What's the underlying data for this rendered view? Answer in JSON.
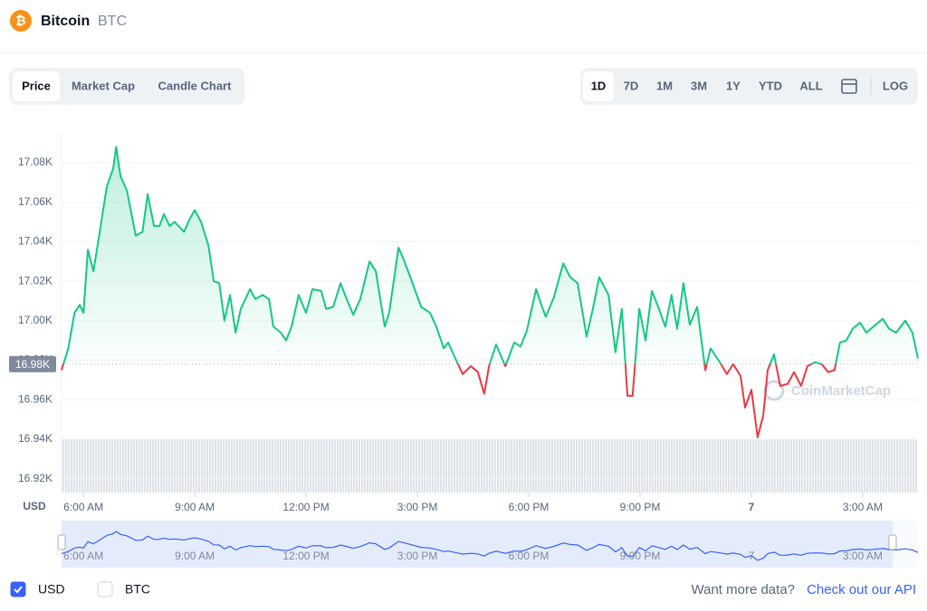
{
  "header": {
    "name": "Bitcoin",
    "symbol": "BTC"
  },
  "tabs": {
    "items": [
      "Price",
      "Market Cap",
      "Candle Chart"
    ],
    "active": 0
  },
  "ranges": {
    "items": [
      "1D",
      "7D",
      "1M",
      "3M",
      "1Y",
      "YTD",
      "ALL"
    ],
    "active": 0,
    "log": "LOG"
  },
  "chart_data": {
    "type": "line",
    "x": [
      5.41,
      5.59,
      5.76,
      5.9,
      6.0,
      6.12,
      6.27,
      6.44,
      6.63,
      6.8,
      6.88,
      7.0,
      7.17,
      7.41,
      7.59,
      7.73,
      7.9,
      8.05,
      8.17,
      8.32,
      8.46,
      8.71,
      8.85,
      9.0,
      9.17,
      9.37,
      9.51,
      9.66,
      9.8,
      9.95,
      10.1,
      10.24,
      10.49,
      10.63,
      10.83,
      11.0,
      11.12,
      11.32,
      11.46,
      11.61,
      11.8,
      12.0,
      12.17,
      12.41,
      12.54,
      12.73,
      12.93,
      13.07,
      13.27,
      13.46,
      13.71,
      13.88,
      14.12,
      14.24,
      14.49,
      14.63,
      14.85,
      15.1,
      15.34,
      15.51,
      15.71,
      15.83,
      16.02,
      16.22,
      16.44,
      16.63,
      16.8,
      16.93,
      17.12,
      17.37,
      17.61,
      17.78,
      17.95,
      18.2,
      18.34,
      18.46,
      18.68,
      18.93,
      19.12,
      19.32,
      19.56,
      19.73,
      19.9,
      20.15,
      20.34,
      20.51,
      20.66,
      20.8,
      20.98,
      21.15,
      21.32,
      21.49,
      21.68,
      21.85,
      22.0,
      22.17,
      22.34,
      22.54,
      22.76,
      22.9,
      23.15,
      23.34,
      23.51,
      23.71,
      23.83,
      24.0,
      24.17,
      24.32,
      24.44,
      24.61,
      24.78,
      24.98,
      25.15,
      25.34,
      25.51,
      25.71,
      25.9,
      26.07,
      26.24,
      26.39,
      26.56,
      26.73,
      26.93,
      27.1,
      27.29,
      27.54,
      27.71,
      27.9,
      28.15,
      28.34,
      28.49
    ],
    "values": [
      16.975,
      16.986,
      17.004,
      17.008,
      17.004,
      17.036,
      17.025,
      17.045,
      17.068,
      17.077,
      17.088,
      17.073,
      17.066,
      17.043,
      17.045,
      17.064,
      17.048,
      17.048,
      17.054,
      17.048,
      17.05,
      17.045,
      17.051,
      17.056,
      17.05,
      17.038,
      17.02,
      17.019,
      17.0,
      17.013,
      16.994,
      17.006,
      17.016,
      17.011,
      17.013,
      17.011,
      16.997,
      16.994,
      16.99,
      16.997,
      17.013,
      17.004,
      17.016,
      17.015,
      17.006,
      17.007,
      17.019,
      17.012,
      17.003,
      17.011,
      17.03,
      17.025,
      16.997,
      17.004,
      17.037,
      17.031,
      17.02,
      17.007,
      17.004,
      16.997,
      16.986,
      16.989,
      16.981,
      16.973,
      16.977,
      16.974,
      16.963,
      16.977,
      16.988,
      16.977,
      16.989,
      16.987,
      16.995,
      17.016,
      17.008,
      17.002,
      17.012,
      17.029,
      17.022,
      17.019,
      16.992,
      17.006,
      17.022,
      17.013,
      16.984,
      17.006,
      16.962,
      16.962,
      17.006,
      16.99,
      17.015,
      17.007,
      16.997,
      17.013,
      16.996,
      17.019,
      16.998,
      17.007,
      16.975,
      16.986,
      16.979,
      16.973,
      16.978,
      16.972,
      16.956,
      16.965,
      16.941,
      16.952,
      16.975,
      16.983,
      16.967,
      16.968,
      16.974,
      16.967,
      16.977,
      16.979,
      16.978,
      16.974,
      16.975,
      16.989,
      16.99,
      16.996,
      16.999,
      16.994,
      16.997,
      17.001,
      16.996,
      16.994,
      17.0,
      16.994,
      16.981
    ],
    "xlim": [
      5.41,
      28.49
    ],
    "xticks": [
      {
        "value": 6,
        "label": "6:00 AM"
      },
      {
        "value": 9,
        "label": "9:00 AM"
      },
      {
        "value": 12,
        "label": "12:00 PM"
      },
      {
        "value": 15,
        "label": "3:00 PM"
      },
      {
        "value": 18,
        "label": "6:00 PM"
      },
      {
        "value": 21,
        "label": "9:00 PM"
      },
      {
        "value": 24,
        "label": "7"
      },
      {
        "value": 27,
        "label": "3:00 AM"
      }
    ],
    "ylim": [
      16.913,
      17.096
    ],
    "yticks": [
      {
        "value": 16.92,
        "label": "16.92K"
      },
      {
        "value": 16.94,
        "label": "16.94K"
      },
      {
        "value": 16.96,
        "label": "16.96K"
      },
      {
        "value": 16.98,
        "label": "16.98K"
      },
      {
        "value": 17.0,
        "label": "17.00K"
      },
      {
        "value": 17.02,
        "label": "17.02K"
      },
      {
        "value": 17.04,
        "label": "17.04K"
      },
      {
        "value": 17.06,
        "label": "17.06K"
      },
      {
        "value": 17.08,
        "label": "17.08K"
      }
    ],
    "y_unit": "USD",
    "baseline": {
      "value": 16.978,
      "label": "16.98K"
    },
    "up_color": "#16c784",
    "down_color": "#ea3943",
    "grid": true,
    "watermark": "CoinMarketCap"
  },
  "footer": {
    "currencies": [
      {
        "label": "USD",
        "checked": true
      },
      {
        "label": "BTC",
        "checked": false
      }
    ],
    "prompt": "Want more data?",
    "link": "Check out our API"
  }
}
